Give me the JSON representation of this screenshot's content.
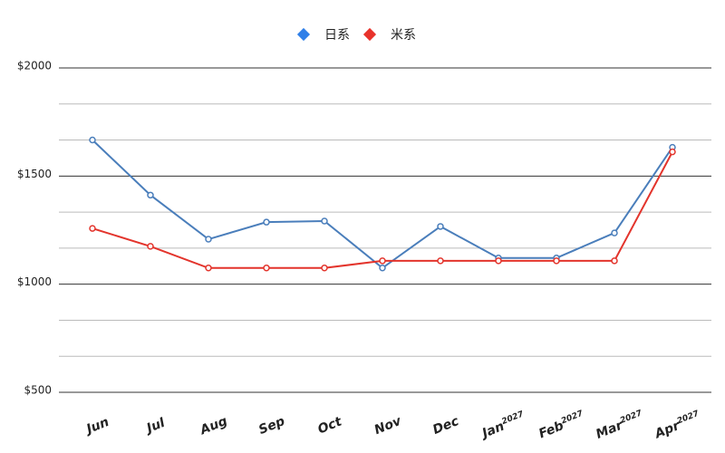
{
  "chart_data": {
    "type": "line",
    "categories": [
      "Jun",
      "Jul",
      "Aug",
      "Sep",
      "Oct",
      "Nov",
      "Dec",
      "Jan",
      "Feb",
      "Mar",
      "Apr"
    ],
    "category_years": [
      null,
      null,
      null,
      null,
      null,
      null,
      null,
      "2027",
      "2027",
      "2027",
      "2027"
    ],
    "series": [
      {
        "name": "日系",
        "color": "#4a7ebb",
        "marker_color": "#2f7fe8",
        "values": [
          1667,
          1412,
          1208,
          1287,
          1292,
          1075,
          1267,
          1121,
          1121,
          1237,
          1633
        ]
      },
      {
        "name": "米系",
        "color": "#e3342c",
        "marker_color": "#e8322b",
        "values": [
          1258,
          1175,
          1075,
          1075,
          1075,
          1108,
          1108,
          1108,
          1108,
          1108,
          1612
        ]
      }
    ],
    "ylim": [
      500,
      2000
    ],
    "yticks": [
      {
        "value": 500,
        "label": "$500"
      },
      {
        "value": 1000,
        "label": "$1000"
      },
      {
        "value": 1500,
        "label": "$1500"
      },
      {
        "value": 2000,
        "label": "$2000"
      }
    ],
    "grid": true,
    "minor_grid_divisions": 3,
    "legend": "top"
  }
}
